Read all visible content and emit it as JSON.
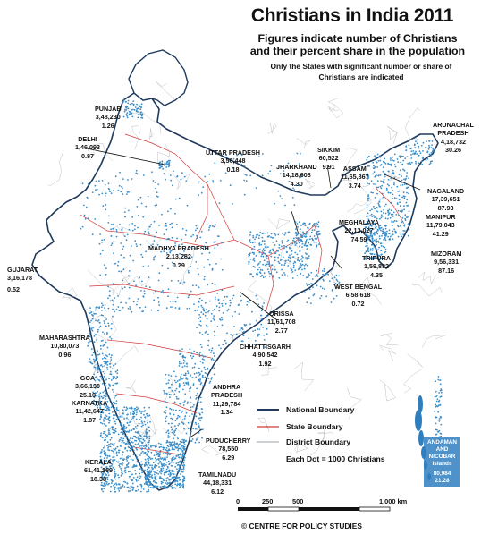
{
  "title": "Christians in India 2011",
  "subtitle": [
    "Figures indicate number of Christians",
    "and their percent share in the population"
  ],
  "note": [
    "Only the States with significant number or share of",
    "Christians are indicated"
  ],
  "colors": {
    "dots": "#3a8ec9",
    "national_boundary": "#1f3a5c",
    "state_boundary": "#d23a3a",
    "district_boundary": "#9fa4aa"
  },
  "states": [
    {
      "key": "punjab",
      "name": "PUNJAB",
      "count": "3,48,230",
      "share": "1.26"
    },
    {
      "key": "delhi",
      "name": "DELHI",
      "count": "1,46,093",
      "share": "0.87"
    },
    {
      "key": "uttar_pradesh",
      "name": "UTTAR PRADESH",
      "count": "3,56,448",
      "share": "0.18"
    },
    {
      "key": "sikkim",
      "name": "SIKKIM",
      "count": "60,522",
      "share": "9.91"
    },
    {
      "key": "arunachal",
      "name": [
        "ARUNACHAL",
        "PRADESH"
      ],
      "count": "4,18,732",
      "share": "30.26"
    },
    {
      "key": "jharkhand",
      "name": "JHARKHAND",
      "count": "14,18,608",
      "share": "4.30"
    },
    {
      "key": "assam",
      "name": "ASSAM",
      "count": "11,65,867",
      "share": "3.74"
    },
    {
      "key": "nagaland",
      "name": "NAGALAND",
      "count": "17,39,651",
      "share": "87.93"
    },
    {
      "key": "meghalaya",
      "name": "MEGHALAYA",
      "count": "22,13,027",
      "share": "74.59"
    },
    {
      "key": "manipur",
      "name": "MANIPUR",
      "count": "11,79,043",
      "share": "41.29"
    },
    {
      "key": "mizoram",
      "name": "MIZORAM",
      "count": "9,56,331",
      "share": "87.16"
    },
    {
      "key": "tripura",
      "name": "TRIPURA",
      "count": "1,59,882",
      "share": "4.35"
    },
    {
      "key": "madhya_pradesh",
      "name": "MADHYA PRADESH",
      "count": "2,13,282",
      "share": "0.29"
    },
    {
      "key": "gujarat",
      "name": "GUJARAT",
      "count": "3,16,178",
      "share": "0.52"
    },
    {
      "key": "west_bengal",
      "name": "WEST BENGAL",
      "count": "6,58,618",
      "share": "0.72"
    },
    {
      "key": "orissa",
      "name": "ORISSA",
      "count": "11,61,708",
      "share": "2.77"
    },
    {
      "key": "maharashtra",
      "name": "MAHARASHTRA",
      "count": "10,80,073",
      "share": "0.96"
    },
    {
      "key": "chhattisgarh",
      "name": "CHHATTISGARH",
      "count": "4,90,542",
      "share": "1.92"
    },
    {
      "key": "goa",
      "name": "GOA",
      "count": "3,66,130",
      "share": "25.10"
    },
    {
      "key": "karnataka",
      "name": "KARNATKA",
      "count": "11,42,647",
      "share": "1.87"
    },
    {
      "key": "andhra_pradesh",
      "name": [
        "ANDHRA",
        "PRADESH"
      ],
      "count": "11,29,784",
      "share": "1.34"
    },
    {
      "key": "puducherry",
      "name": "PUDUCHERRY",
      "count": "78,550",
      "share": "6.29"
    },
    {
      "key": "kerala",
      "name": "KERALA",
      "count": "61,41,269",
      "share": "18.38"
    },
    {
      "key": "tamilnadu",
      "name": "TAMILNADU",
      "count": "44,18,331",
      "share": "6.12"
    },
    {
      "key": "andaman",
      "name": [
        "ANDAMAN",
        "AND",
        "NICOBAR",
        "Islands"
      ],
      "count": "80,984",
      "share": "21.28"
    }
  ],
  "legend": {
    "national": "National Boundary",
    "state": "State Boundary",
    "district": "District Boundary",
    "dot_note": "Each Dot = 1000 Christians"
  },
  "scale": {
    "ticks": [
      "0",
      "250",
      "500",
      "1,000 km"
    ]
  },
  "credit": "© CENTRE FOR POLICY STUDIES"
}
